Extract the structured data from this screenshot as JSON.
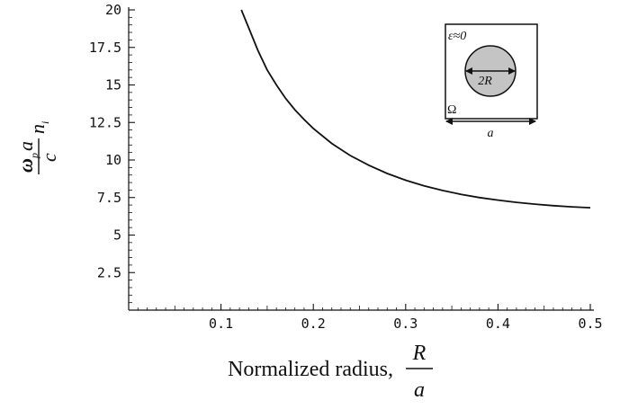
{
  "chart_data": {
    "type": "line",
    "xlabel": {
      "text": "Normalized radius,",
      "fraction_numerator": "R",
      "fraction_denominator": "a"
    },
    "ylabel": {
      "numerator_main": "ω",
      "numerator_sub": "p",
      "numerator_var": "a",
      "denominator": "c",
      "suffix_main": "n",
      "suffix_sub": "i"
    },
    "xlim": [
      0,
      0.5
    ],
    "ylim": [
      0,
      20
    ],
    "x_ticks": [
      0.1,
      0.2,
      0.3,
      0.4,
      0.5
    ],
    "x_tick_labels": [
      "0.1",
      "0.2",
      "0.3",
      "0.4",
      "0.5"
    ],
    "y_ticks": [
      2.5,
      5,
      7.5,
      10,
      12.5,
      15,
      17.5,
      20
    ],
    "y_tick_labels": [
      "2.5",
      "5",
      "7.5",
      "10",
      "12.5",
      "15",
      "17.5",
      "20"
    ],
    "grid": false,
    "series": [
      {
        "x": [
          0.122,
          0.13,
          0.14,
          0.15,
          0.16,
          0.17,
          0.18,
          0.19,
          0.2,
          0.22,
          0.24,
          0.26,
          0.28,
          0.3,
          0.32,
          0.34,
          0.36,
          0.38,
          0.4,
          0.42,
          0.44,
          0.46,
          0.48,
          0.5
        ],
        "y": [
          20.0,
          18.8,
          17.3,
          16.0,
          15.0,
          14.1,
          13.35,
          12.7,
          12.1,
          11.1,
          10.3,
          9.65,
          9.1,
          8.65,
          8.28,
          7.97,
          7.71,
          7.5,
          7.33,
          7.18,
          7.06,
          6.96,
          6.88,
          6.82
        ]
      }
    ],
    "inset": {
      "epsilon_label": "ε≈0",
      "diameter_label": "2R",
      "region_label": "Ω",
      "width_label": "a"
    }
  }
}
